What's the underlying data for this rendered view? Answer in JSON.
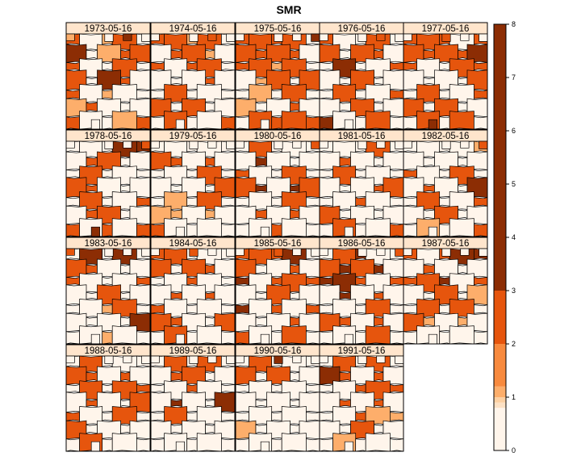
{
  "chart_data": {
    "type": "choropleth-panels",
    "title": "SMR",
    "panels": [
      {
        "label": "1973-05-16",
        "values": [
          2,
          0,
          1,
          2,
          0,
          3,
          0,
          1,
          2,
          2,
          2,
          0,
          0,
          2,
          0,
          2,
          0,
          3,
          2,
          0,
          2,
          0,
          1,
          0,
          0,
          1,
          2,
          0,
          0,
          0,
          2,
          0,
          0,
          1,
          2,
          1,
          0,
          3,
          0,
          0
        ]
      },
      {
        "label": "1974-05-16",
        "values": [
          2,
          2,
          1,
          2,
          0,
          0,
          2,
          2,
          1,
          0,
          2,
          0,
          2,
          2,
          0,
          0,
          0,
          0,
          2,
          0,
          0,
          2,
          0,
          0,
          0,
          2,
          0,
          2,
          0,
          0,
          0,
          2,
          0,
          0,
          2,
          0,
          0,
          2,
          0,
          0
        ]
      },
      {
        "label": "1975-05-16",
        "values": [
          2,
          2,
          2,
          2,
          0,
          2,
          2,
          2,
          2,
          0,
          2,
          2,
          1,
          2,
          0,
          0,
          1,
          2,
          0,
          2,
          0,
          1,
          0,
          2,
          0,
          1,
          0,
          0,
          2,
          0,
          0,
          2,
          2,
          2,
          2,
          0,
          0,
          0,
          3,
          0
        ]
      },
      {
        "label": "1976-05-16",
        "values": [
          2,
          0,
          0,
          2,
          0,
          2,
          0,
          2,
          2,
          0,
          0,
          3,
          0,
          0,
          2,
          0,
          0,
          2,
          0,
          0,
          0,
          2,
          0,
          0,
          2,
          0,
          0,
          2,
          0,
          0,
          3,
          0,
          0,
          2,
          0,
          0,
          0,
          2,
          0,
          0
        ]
      },
      {
        "label": "1977-05-16",
        "values": [
          2,
          2,
          2,
          0,
          2,
          2,
          2,
          2,
          2,
          3,
          2,
          0,
          0,
          2,
          2,
          0,
          0,
          0,
          0,
          2,
          0,
          2,
          0,
          0,
          2,
          2,
          0,
          2,
          0,
          0,
          0,
          2,
          0,
          2,
          0,
          0,
          2,
          0,
          0,
          3
        ]
      },
      {
        "label": "1978-05-16",
        "values": [
          0,
          0,
          0,
          3,
          3,
          0,
          2,
          2,
          0,
          0,
          0,
          2,
          0,
          0,
          0,
          2,
          2,
          0,
          0,
          0,
          0,
          2,
          0,
          0,
          2,
          0,
          2,
          2,
          0,
          0,
          2,
          0,
          2,
          0,
          2,
          0,
          0,
          0,
          2,
          3
        ]
      },
      {
        "label": "1979-05-16",
        "values": [
          0,
          0,
          0,
          0,
          0,
          2,
          2,
          0,
          2,
          0,
          0,
          0,
          0,
          2,
          0,
          0,
          0,
          0,
          0,
          2,
          0,
          1,
          0,
          2,
          0,
          1,
          1,
          0,
          1,
          0,
          2,
          0,
          0,
          0,
          0,
          0,
          0,
          0,
          0,
          0
        ]
      },
      {
        "label": "1980-05-16",
        "values": [
          0,
          2,
          0,
          0,
          0,
          0,
          3,
          0,
          0,
          0,
          2,
          0,
          0,
          2,
          0,
          2,
          3,
          0,
          3,
          2,
          0,
          0,
          0,
          2,
          0,
          0,
          2,
          0,
          2,
          0,
          0,
          0,
          2,
          0,
          0,
          0,
          0,
          0,
          2,
          0
        ]
      },
      {
        "label": "1981-05-16",
        "values": [
          0,
          0,
          0,
          2,
          0,
          0,
          2,
          0,
          0,
          0,
          0,
          2,
          0,
          0,
          0,
          0,
          0,
          0,
          2,
          2,
          0,
          0,
          2,
          0,
          0,
          2,
          0,
          0,
          0,
          0,
          0,
          2,
          0,
          0,
          2,
          0,
          0,
          0,
          0,
          0
        ]
      },
      {
        "label": "1982-05-16",
        "values": [
          0,
          0,
          0,
          0,
          1,
          0,
          0,
          0,
          0,
          0,
          2,
          0,
          0,
          2,
          0,
          0,
          2,
          0,
          0,
          3,
          0,
          2,
          0,
          0,
          2,
          0,
          0,
          2,
          0,
          0,
          0,
          1,
          0,
          0,
          2,
          0,
          0,
          0,
          2,
          0
        ]
      },
      {
        "label": "1983-05-16",
        "values": [
          0,
          3,
          0,
          3,
          0,
          2,
          2,
          0,
          0,
          0,
          2,
          0,
          0,
          0,
          2,
          0,
          0,
          2,
          0,
          0,
          0,
          0,
          1,
          2,
          0,
          0,
          0,
          0,
          0,
          3,
          0,
          0,
          1,
          0,
          0,
          2,
          0,
          0,
          0,
          0
        ]
      },
      {
        "label": "1984-05-16",
        "values": [
          2,
          2,
          0,
          0,
          0,
          2,
          0,
          2,
          2,
          0,
          0,
          0,
          2,
          0,
          0,
          0,
          2,
          0,
          2,
          0,
          2,
          0,
          0,
          0,
          0,
          2,
          2,
          0,
          0,
          2,
          0,
          2,
          0,
          0,
          0,
          0,
          2,
          0,
          0,
          0
        ]
      },
      {
        "label": "1985-05-16",
        "values": [
          2,
          2,
          2,
          3,
          0,
          2,
          0,
          0,
          2,
          0,
          3,
          0,
          2,
          2,
          2,
          0,
          0,
          2,
          0,
          0,
          3,
          0,
          2,
          0,
          2,
          0,
          0,
          0,
          2,
          0,
          2,
          0,
          0,
          2,
          0,
          0,
          2,
          0,
          0,
          0
        ]
      },
      {
        "label": "1986-05-16",
        "values": [
          0,
          2,
          3,
          0,
          0,
          2,
          3,
          2,
          3,
          0,
          3,
          3,
          2,
          0,
          2,
          0,
          3,
          0,
          2,
          0,
          0,
          0,
          0,
          2,
          0,
          2,
          2,
          0,
          2,
          0,
          0,
          0,
          0,
          2,
          0,
          0,
          0,
          0,
          2,
          0
        ]
      },
      {
        "label": "1987-05-16",
        "values": [
          2,
          0,
          2,
          3,
          3,
          0,
          2,
          0,
          0,
          0,
          2,
          2,
          3,
          0,
          2,
          0,
          0,
          2,
          0,
          1,
          0,
          2,
          0,
          2,
          0,
          2,
          1,
          0,
          1,
          0,
          0,
          0,
          0,
          0,
          0,
          0,
          0,
          0,
          0,
          0
        ]
      },
      {
        "label": "1988-05-16",
        "values": [
          0,
          2,
          0,
          0,
          0,
          2,
          2,
          0,
          2,
          0,
          0,
          2,
          0,
          2,
          2,
          0,
          2,
          0,
          0,
          2,
          2,
          0,
          0,
          2,
          0,
          2,
          0,
          0,
          0,
          0,
          0,
          2,
          0,
          0,
          0,
          0,
          0,
          0,
          0,
          0
        ]
      },
      {
        "label": "1989-05-16",
        "values": [
          0,
          2,
          0,
          2,
          0,
          0,
          2,
          2,
          0,
          0,
          0,
          0,
          2,
          0,
          0,
          0,
          3,
          0,
          0,
          3,
          0,
          2,
          0,
          0,
          0,
          0,
          0,
          0,
          0,
          0,
          0,
          0,
          0,
          0,
          0,
          0,
          0,
          0,
          0,
          0
        ]
      },
      {
        "label": "1990-05-16",
        "values": [
          0,
          2,
          0,
          0,
          0,
          2,
          0,
          2,
          0,
          0,
          0,
          0,
          0,
          0,
          0,
          0,
          0,
          0,
          0,
          0,
          0,
          0,
          0,
          0,
          0,
          1,
          0,
          0,
          0,
          0,
          0,
          0,
          0,
          0,
          0,
          0,
          3,
          0,
          0,
          0
        ]
      },
      {
        "label": "1991-05-16",
        "values": [
          0,
          2,
          0,
          2,
          0,
          3,
          2,
          0,
          2,
          0,
          0,
          0,
          2,
          2,
          2,
          0,
          2,
          0,
          2,
          0,
          0,
          0,
          2,
          1,
          1,
          0,
          0,
          2,
          0,
          0,
          0,
          1,
          0,
          0,
          0,
          0,
          0,
          0,
          0,
          0
        ]
      }
    ],
    "colorbar": {
      "ticks": [
        "0",
        "1",
        "2",
        "3",
        "4",
        "5",
        "6",
        "7",
        "8"
      ],
      "range": [
        0,
        8
      ],
      "bands": [
        {
          "from": 0,
          "to": 0.8,
          "color": "#FFF5EB"
        },
        {
          "from": 0.8,
          "to": 0.9,
          "color": "#FDE1C4"
        },
        {
          "from": 0.9,
          "to": 1.0,
          "color": "#FDD0A2"
        },
        {
          "from": 1.0,
          "to": 1.2,
          "color": "#FDAE6B"
        },
        {
          "from": 1.2,
          "to": 2.0,
          "color": "#F88A3E"
        },
        {
          "from": 2.0,
          "to": 3.0,
          "color": "#E6550D"
        },
        {
          "from": 3.0,
          "to": 8.0,
          "color": "#8C2D04"
        }
      ]
    },
    "colors": {
      "level_0": "#FFF5EB",
      "level_1": "#FDAE6B",
      "level_2": "#E6550D",
      "level_3": "#8C2D04",
      "strip": "#FFE5CC",
      "border": "#000000"
    }
  }
}
